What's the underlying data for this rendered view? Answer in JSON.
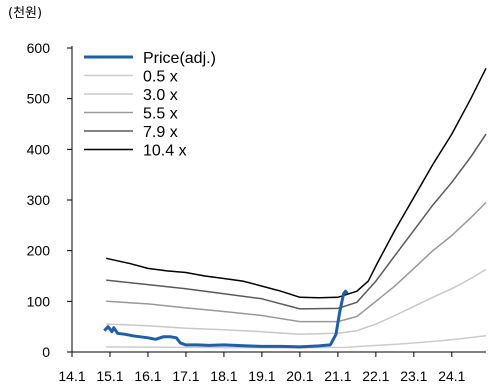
{
  "chart_data": {
    "type": "line",
    "unit_label": "(천원)",
    "x_ticks": [
      "14.1",
      "15.1",
      "16.1",
      "17.1",
      "18.1",
      "19.1",
      "20.1",
      "21.1",
      "22.1",
      "23.1",
      "24.1"
    ],
    "x_range": [
      2014.0,
      2024.9
    ],
    "ylim": [
      0,
      600
    ],
    "y_ticks": [
      0,
      100,
      200,
      300,
      400,
      500,
      600
    ],
    "grid": false,
    "legend_position": "top-left",
    "series": [
      {
        "name": "Price(adj.)",
        "color": "#1f5fa8",
        "width": 3,
        "points": [
          [
            2014.85,
            42
          ],
          [
            2014.95,
            50
          ],
          [
            2015.05,
            40
          ],
          [
            2015.1,
            48
          ],
          [
            2015.2,
            37
          ],
          [
            2015.4,
            35
          ],
          [
            2015.6,
            32
          ],
          [
            2015.8,
            30
          ],
          [
            2016.0,
            28
          ],
          [
            2016.2,
            25
          ],
          [
            2016.4,
            30
          ],
          [
            2016.6,
            30
          ],
          [
            2016.75,
            28
          ],
          [
            2016.85,
            18
          ],
          [
            2017.0,
            14
          ],
          [
            2017.3,
            14
          ],
          [
            2017.6,
            13
          ],
          [
            2018.0,
            14
          ],
          [
            2018.3,
            13
          ],
          [
            2018.6,
            12
          ],
          [
            2019.0,
            11
          ],
          [
            2019.5,
            11
          ],
          [
            2020.0,
            10
          ],
          [
            2020.5,
            12
          ],
          [
            2020.8,
            14
          ],
          [
            2020.95,
            35
          ],
          [
            2021.05,
            80
          ],
          [
            2021.15,
            115
          ],
          [
            2021.2,
            120
          ],
          [
            2021.25,
            115
          ]
        ]
      },
      {
        "name": "0.5 x",
        "color": "#cccccc",
        "width": 1.5,
        "points": [
          [
            2014.9,
            10
          ],
          [
            2017.0,
            9
          ],
          [
            2020.0,
            8
          ],
          [
            2021.2,
            9
          ],
          [
            2021.8,
            12
          ],
          [
            2022.5,
            15
          ],
          [
            2023.2,
            19
          ],
          [
            2024.0,
            24
          ],
          [
            2024.9,
            32
          ]
        ]
      },
      {
        "name": "3.0 x",
        "color": "#c8c8c8",
        "width": 1.5,
        "points": [
          [
            2014.9,
            55
          ],
          [
            2016.0,
            52
          ],
          [
            2017.0,
            47
          ],
          [
            2018.0,
            44
          ],
          [
            2019.0,
            40
          ],
          [
            2020.0,
            35
          ],
          [
            2021.0,
            37
          ],
          [
            2021.5,
            42
          ],
          [
            2022.0,
            55
          ],
          [
            2022.5,
            72
          ],
          [
            2023.0,
            90
          ],
          [
            2023.5,
            108
          ],
          [
            2024.0,
            125
          ],
          [
            2024.5,
            145
          ],
          [
            2024.9,
            163
          ]
        ]
      },
      {
        "name": "5.5 x",
        "color": "#999999",
        "width": 1.5,
        "points": [
          [
            2014.9,
            100
          ],
          [
            2016.0,
            95
          ],
          [
            2017.0,
            87
          ],
          [
            2018.0,
            80
          ],
          [
            2019.0,
            72
          ],
          [
            2020.0,
            60
          ],
          [
            2021.0,
            60
          ],
          [
            2021.5,
            70
          ],
          [
            2022.0,
            100
          ],
          [
            2022.5,
            130
          ],
          [
            2023.0,
            165
          ],
          [
            2023.5,
            200
          ],
          [
            2024.0,
            230
          ],
          [
            2024.5,
            265
          ],
          [
            2024.9,
            295
          ]
        ]
      },
      {
        "name": "7.9 x",
        "color": "#5a5a5a",
        "width": 1.5,
        "points": [
          [
            2014.9,
            142
          ],
          [
            2016.0,
            133
          ],
          [
            2017.0,
            125
          ],
          [
            2018.0,
            115
          ],
          [
            2019.0,
            105
          ],
          [
            2020.0,
            85
          ],
          [
            2021.0,
            86
          ],
          [
            2021.5,
            98
          ],
          [
            2022.0,
            140
          ],
          [
            2022.5,
            190
          ],
          [
            2023.0,
            240
          ],
          [
            2023.5,
            290
          ],
          [
            2024.0,
            335
          ],
          [
            2024.5,
            385
          ],
          [
            2024.9,
            430
          ]
        ]
      },
      {
        "name": "10.4 x",
        "color": "#000000",
        "width": 1.5,
        "points": [
          [
            2014.9,
            185
          ],
          [
            2015.5,
            175
          ],
          [
            2016.0,
            165
          ],
          [
            2016.5,
            160
          ],
          [
            2017.0,
            157
          ],
          [
            2017.5,
            150
          ],
          [
            2018.0,
            145
          ],
          [
            2018.5,
            140
          ],
          [
            2019.0,
            130
          ],
          [
            2019.5,
            120
          ],
          [
            2020.0,
            108
          ],
          [
            2020.5,
            107
          ],
          [
            2021.0,
            108
          ],
          [
            2021.5,
            120
          ],
          [
            2021.8,
            140
          ],
          [
            2022.0,
            170
          ],
          [
            2022.5,
            240
          ],
          [
            2023.0,
            305
          ],
          [
            2023.5,
            370
          ],
          [
            2024.0,
            430
          ],
          [
            2024.5,
            500
          ],
          [
            2024.9,
            560
          ]
        ]
      }
    ]
  }
}
